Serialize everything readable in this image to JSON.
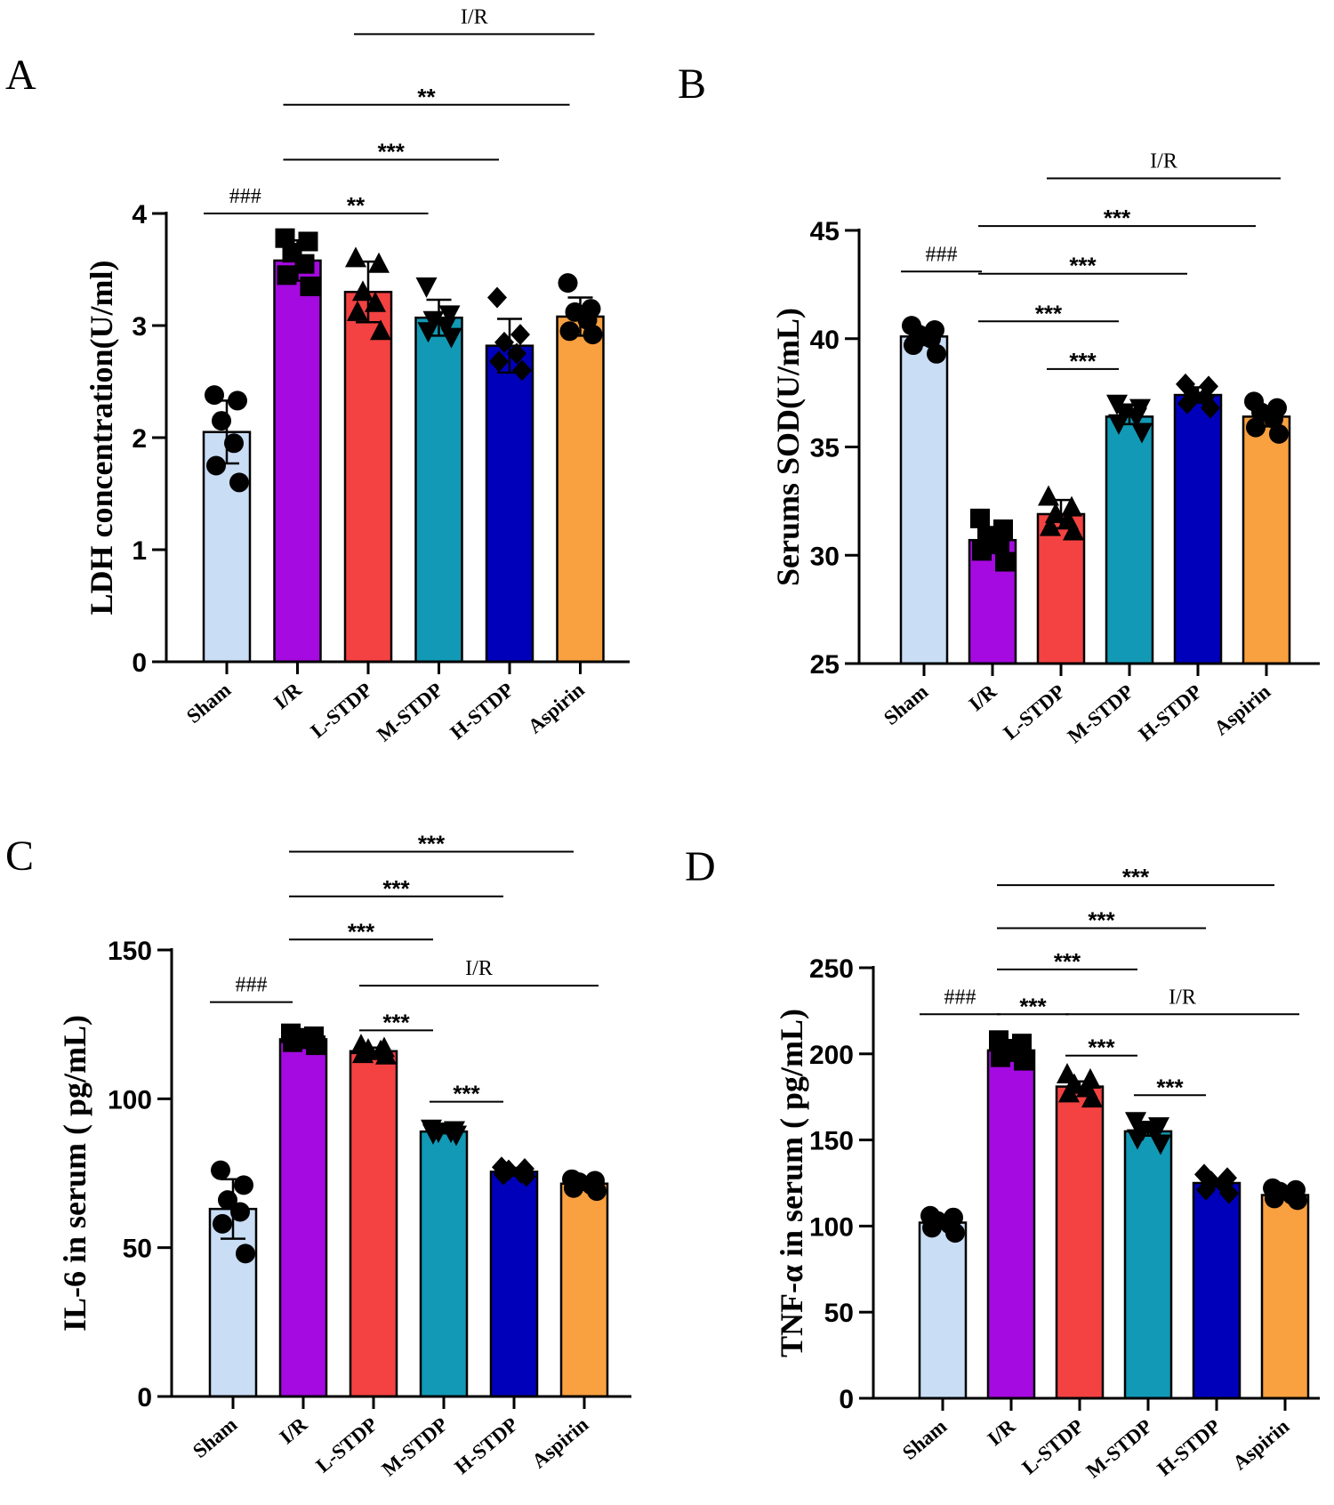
{
  "categories": [
    "Sham",
    "I/R",
    "L-STDP",
    "M-STDP",
    "H-STDP",
    "Aspirin"
  ],
  "colors": {
    "Sham": "#c9ddf5",
    "I/R": "#a50ae0",
    "L-STDP": "#f44242",
    "M-STDP": "#1299b5",
    "H-STDP": "#0000bb",
    "Aspirin": "#f9a040"
  },
  "markers": [
    "circle",
    "square",
    "triangle",
    "triangle-down",
    "diamond",
    "circle"
  ],
  "chart_data": [
    {
      "panel": "A",
      "type": "bar",
      "ylabel": "LDH concentration(U/ml)",
      "ylim": [
        0,
        4
      ],
      "yticks": [
        0,
        1,
        2,
        3,
        4
      ],
      "yticklabels": [
        "0",
        "1",
        "2",
        "3",
        "4"
      ],
      "series": [
        {
          "name": "Sham",
          "mean": 2.05,
          "sd": 0.28,
          "points": [
            2.38,
            2.33,
            2.15,
            1.95,
            1.75,
            1.6
          ]
        },
        {
          "name": "I/R",
          "mean": 3.58,
          "sd": 0.18,
          "points": [
            3.78,
            3.75,
            3.65,
            3.55,
            3.45,
            3.35
          ]
        },
        {
          "name": "L-STDP",
          "mean": 3.3,
          "sd": 0.27,
          "points": [
            3.6,
            3.55,
            3.3,
            3.2,
            3.12,
            2.95
          ]
        },
        {
          "name": "M-STDP",
          "mean": 3.07,
          "sd": 0.16,
          "points": [
            3.35,
            3.1,
            3.05,
            3.0,
            2.95,
            2.9
          ]
        },
        {
          "name": "H-STDP",
          "mean": 2.82,
          "sd": 0.24,
          "points": [
            3.25,
            2.92,
            2.85,
            2.75,
            2.68,
            2.6
          ]
        },
        {
          "name": "Aspirin",
          "mean": 3.08,
          "sd": 0.17,
          "points": [
            3.38,
            3.15,
            3.12,
            3.05,
            2.95,
            2.92
          ]
        }
      ],
      "sig": [
        {
          "type": "hash",
          "label": "###",
          "from": 0,
          "to": 1,
          "level": 4.0
        },
        {
          "type": "star",
          "label": "**",
          "from": 1,
          "to": 3,
          "level": 4.0
        },
        {
          "type": "star",
          "label": "***",
          "from": 1,
          "to": 4,
          "level": 4.48
        },
        {
          "type": "star",
          "label": "**",
          "from": 1,
          "to": 5,
          "level": 4.97
        },
        {
          "type": "ref",
          "label": "I/R",
          "from": 2,
          "to": 5,
          "level": 5.6
        }
      ]
    },
    {
      "panel": "B",
      "type": "bar",
      "ylabel": "Serums SOD(U/mL)",
      "ylim": [
        25,
        45
      ],
      "yticks": [
        25,
        30,
        35,
        40,
        45
      ],
      "yticklabels": [
        "25",
        "30",
        "35",
        "40",
        "45"
      ],
      "series": [
        {
          "name": "Sham",
          "mean": 40.1,
          "sd": 0.4,
          "points": [
            40.6,
            40.4,
            40.2,
            40.0,
            39.7,
            39.3
          ]
        },
        {
          "name": "I/R",
          "mean": 30.7,
          "sd": 0.6,
          "points": [
            31.7,
            31.2,
            30.9,
            30.6,
            30.2,
            29.7
          ]
        },
        {
          "name": "L-STDP",
          "mean": 31.9,
          "sd": 0.65,
          "points": [
            32.7,
            32.2,
            31.9,
            31.6,
            31.3,
            31.1
          ]
        },
        {
          "name": "M-STDP",
          "mean": 36.4,
          "sd": 0.35,
          "points": [
            37.0,
            36.8,
            36.6,
            36.4,
            36.1,
            35.7
          ]
        },
        {
          "name": "H-STDP",
          "mean": 37.4,
          "sd": 0.35,
          "points": [
            37.9,
            37.8,
            37.4,
            37.3,
            37.0,
            36.8
          ]
        },
        {
          "name": "Aspirin",
          "mean": 36.4,
          "sd": 0.45,
          "points": [
            37.1,
            36.8,
            36.6,
            36.3,
            35.9,
            35.6
          ]
        }
      ],
      "sig": [
        {
          "type": "hash",
          "label": "###",
          "from": 0,
          "to": 1,
          "level": 43.1
        },
        {
          "type": "star",
          "label": "***",
          "from": 2,
          "to": 3,
          "level": 38.6
        },
        {
          "type": "star",
          "label": "***",
          "from": 1,
          "to": 3,
          "level": 40.8
        },
        {
          "type": "star",
          "label": "***",
          "from": 1,
          "to": 4,
          "level": 43.0
        },
        {
          "type": "star",
          "label": "***",
          "from": 1,
          "to": 5,
          "level": 45.2
        },
        {
          "type": "ref",
          "label": "I/R",
          "from": 2,
          "to": 5,
          "level": 47.4
        }
      ]
    },
    {
      "panel": "C",
      "type": "bar",
      "ylabel": "IL-6 in serum ( pg/mL)",
      "ylim": [
        0,
        150
      ],
      "yticks": [
        0,
        50,
        100,
        150
      ],
      "yticklabels": [
        "0",
        "50",
        "100",
        "150"
      ],
      "series": [
        {
          "name": "Sham",
          "mean": 63,
          "sd": 10,
          "points": [
            76,
            71,
            66,
            62,
            58,
            48
          ]
        },
        {
          "name": "I/R",
          "mean": 120,
          "sd": 1.5,
          "points": [
            122,
            121,
            120.5,
            120,
            119,
            118
          ]
        },
        {
          "name": "L-STDP",
          "mean": 116,
          "sd": 1.2,
          "points": [
            118,
            117,
            116.5,
            116,
            115,
            114.5
          ]
        },
        {
          "name": "M-STDP",
          "mean": 89,
          "sd": 0.6,
          "points": [
            90,
            89.5,
            89,
            89,
            88.5,
            88
          ]
        },
        {
          "name": "H-STDP",
          "mean": 75.5,
          "sd": 1.3,
          "points": [
            77,
            76.5,
            76,
            75,
            74.5,
            74
          ]
        },
        {
          "name": "Aspirin",
          "mean": 71.5,
          "sd": 1.2,
          "points": [
            73,
            72.5,
            72,
            71,
            70,
            69
          ]
        }
      ],
      "sig": [
        {
          "type": "hash",
          "label": "###",
          "from": 0,
          "to": 1,
          "level": 132.5
        },
        {
          "type": "star",
          "label": "***",
          "from": 3,
          "to": 4,
          "level": 99
        },
        {
          "type": "star",
          "label": "***",
          "from": 2,
          "to": 3,
          "level": 123
        },
        {
          "type": "ref",
          "label": "I/R",
          "from": 2,
          "to": 5,
          "level": 138
        },
        {
          "type": "star",
          "label": "***",
          "from": 1,
          "to": 3,
          "level": 153.5
        },
        {
          "type": "star",
          "label": "***",
          "from": 1,
          "to": 4,
          "level": 168
        },
        {
          "type": "star",
          "label": "***",
          "from": 1,
          "to": 5,
          "level": 183
        }
      ]
    },
    {
      "panel": "D",
      "type": "bar",
      "ylabel": "TNF-α in serum ( pg/mL)",
      "ylim": [
        0,
        250
      ],
      "yticks": [
        0,
        50,
        100,
        150,
        200,
        250
      ],
      "yticklabels": [
        "0",
        "50",
        "100",
        "150",
        "200",
        "250"
      ],
      "series": [
        {
          "name": "Sham",
          "mean": 102,
          "sd": 2.5,
          "points": [
            106,
            105,
            103,
            101,
            99,
            96
          ]
        },
        {
          "name": "I/R",
          "mean": 202,
          "sd": 3.5,
          "points": [
            208,
            206,
            203,
            201,
            198,
            196
          ]
        },
        {
          "name": "L-STDP",
          "mean": 181,
          "sd": 3,
          "points": [
            188,
            185,
            182,
            180,
            177,
            174
          ]
        },
        {
          "name": "M-STDP",
          "mean": 155,
          "sd": 2.5,
          "points": [
            161,
            158,
            156,
            154,
            151,
            148
          ]
        },
        {
          "name": "H-STDP",
          "mean": 125,
          "sd": 2,
          "points": [
            130,
            128,
            126,
            124,
            121,
            119
          ]
        },
        {
          "name": "Aspirin",
          "mean": 118,
          "sd": 1.5,
          "points": [
            122,
            121,
            120,
            118,
            116,
            115
          ]
        }
      ],
      "sig": [
        {
          "type": "hash",
          "label": "###",
          "from": 0,
          "to": 1,
          "level": 223
        },
        {
          "type": "star",
          "label": "***",
          "from": 1,
          "to": 2,
          "level": 223
        },
        {
          "type": "star",
          "label": "***",
          "from": 3,
          "to": 4,
          "level": 176
        },
        {
          "type": "star",
          "label": "***",
          "from": 2,
          "to": 3,
          "level": 199
        },
        {
          "type": "ref",
          "label": "I/R",
          "from": 2,
          "to": 5,
          "level": 223
        },
        {
          "type": "star",
          "label": "***",
          "from": 1,
          "to": 3,
          "level": 249
        },
        {
          "type": "star",
          "label": "***",
          "from": 1,
          "to": 4,
          "level": 273
        },
        {
          "type": "star",
          "label": "***",
          "from": 1,
          "to": 5,
          "level": 298
        }
      ]
    }
  ]
}
